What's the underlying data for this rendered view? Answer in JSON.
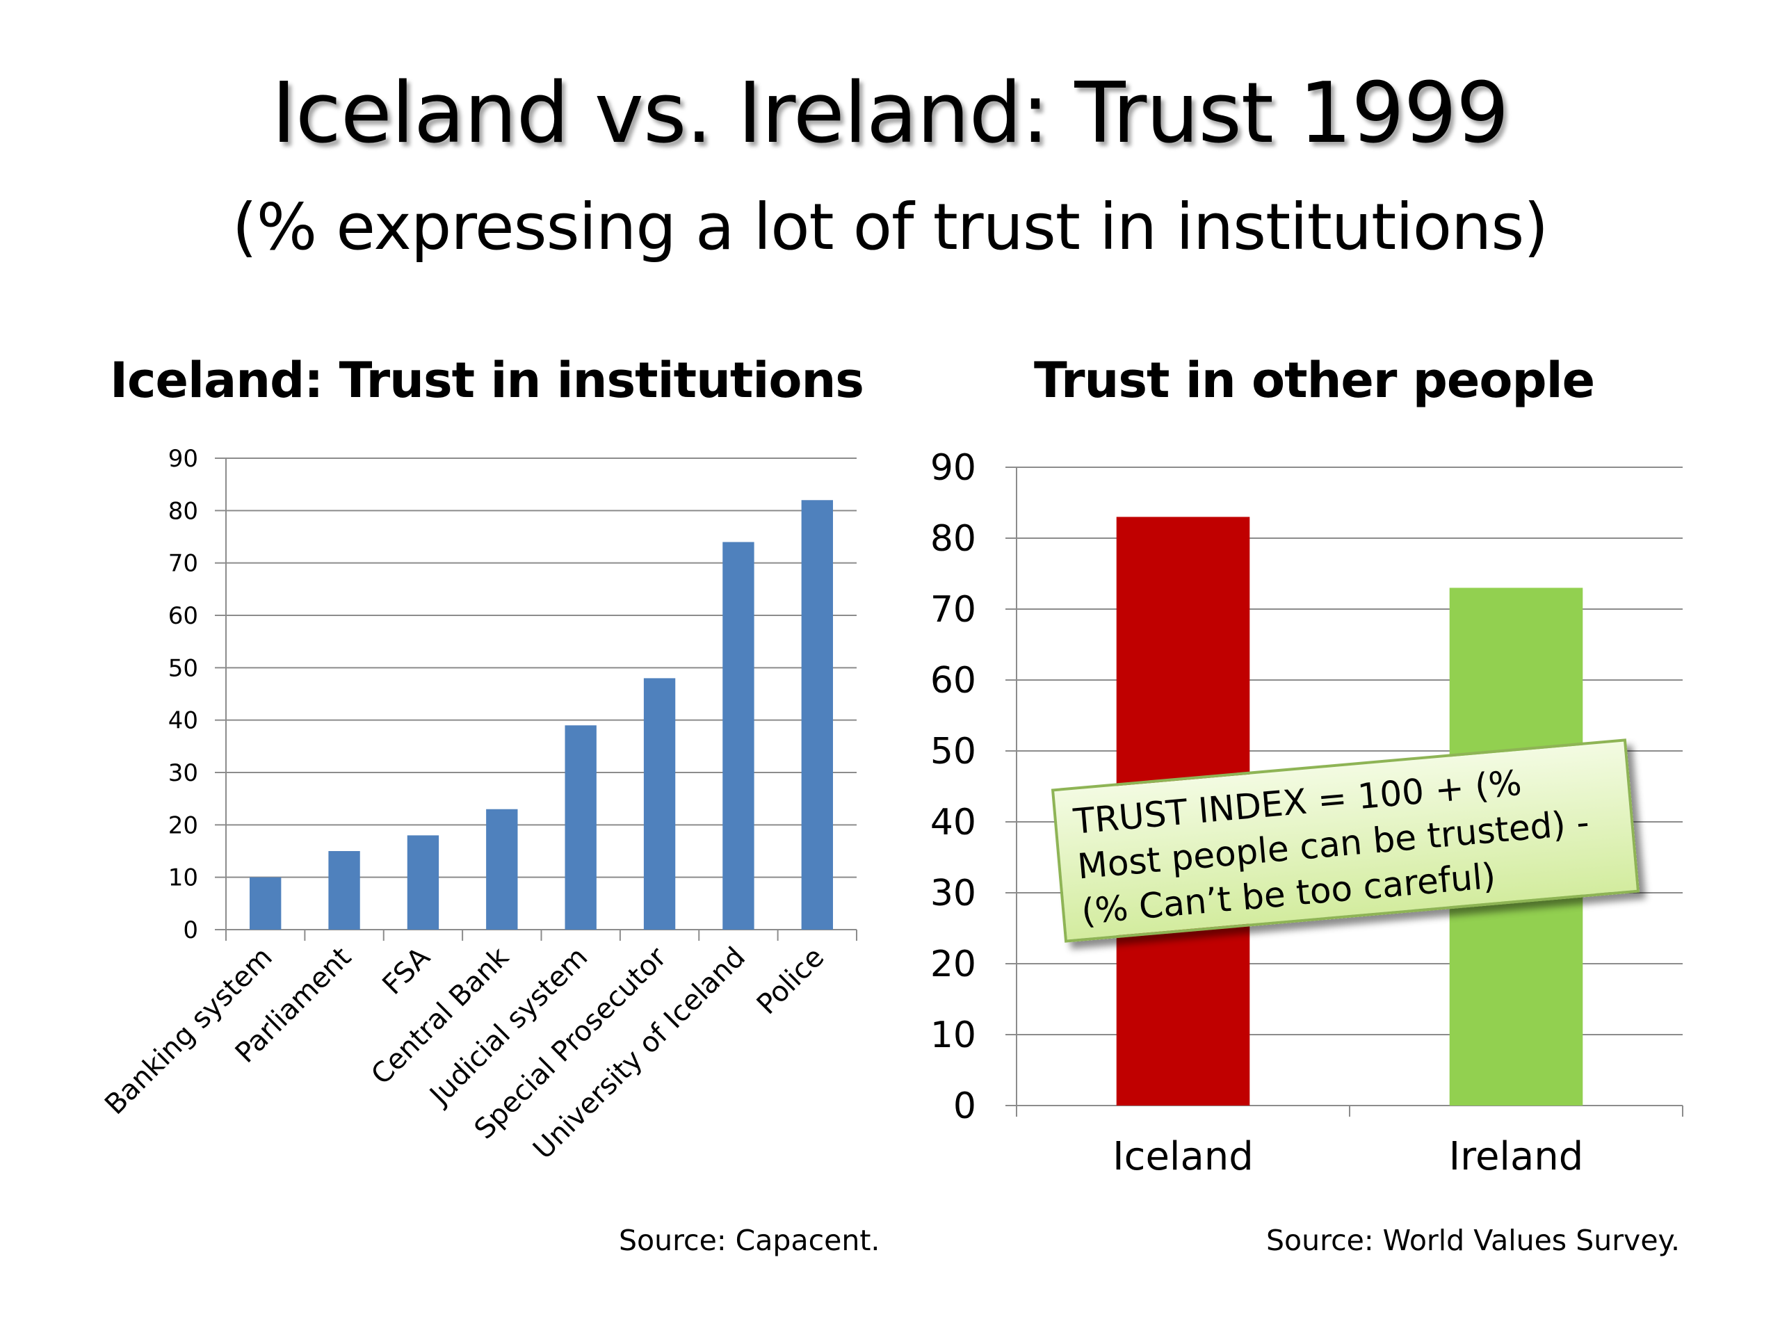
{
  "slide": {
    "title": "Iceland vs. Ireland: Trust 1999",
    "subtitle": "(% expressing a lot of trust in institutions)"
  },
  "chart_data": [
    {
      "type": "bar",
      "title": "Iceland: Trust in institutions",
      "categories": [
        "Banking system",
        "Parliament",
        "FSA",
        "Central Bank",
        "Judicial system",
        "Special Prosecutor",
        "University of Iceland",
        "Police"
      ],
      "values": [
        10,
        15,
        18,
        23,
        39,
        48,
        74,
        82
      ],
      "ylim": [
        0,
        90
      ],
      "yticks": [
        0,
        10,
        20,
        30,
        40,
        50,
        60,
        70,
        80,
        90
      ],
      "grid": true,
      "colors": [
        "#4f81bd"
      ],
      "source": "Source: Capacent."
    },
    {
      "type": "bar",
      "title": "Trust in other people",
      "categories": [
        "Iceland",
        "Ireland"
      ],
      "values": [
        83,
        73
      ],
      "ylim": [
        0,
        90
      ],
      "yticks": [
        0,
        10,
        20,
        30,
        40,
        50,
        60,
        70,
        80,
        90
      ],
      "grid": true,
      "colors": [
        "#c00000",
        "#92d050"
      ],
      "annotation": "TRUST INDEX = 100 + (%\nMost people can be trusted) -\n(% Can’t be too careful)",
      "source": "Source: World Values Survey."
    }
  ]
}
